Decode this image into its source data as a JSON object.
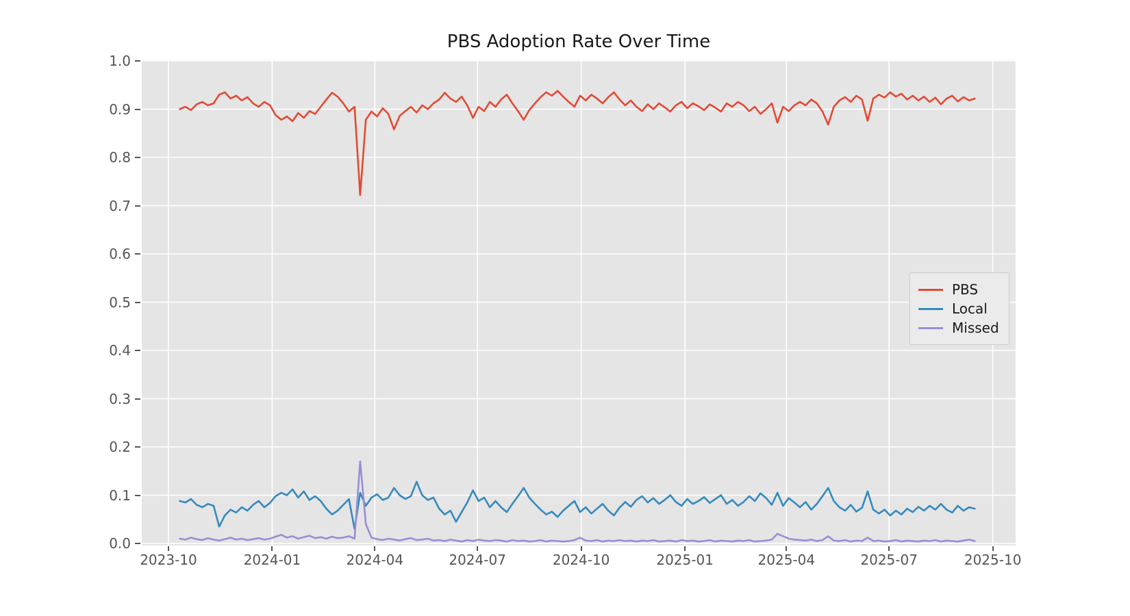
{
  "colors": {
    "figure_background": "#ffffff",
    "plot_background": "#e5e5e5",
    "grid": "#ffffff",
    "tick_label": "#555555",
    "title_text": "#1a1a1a",
    "legend_background": "#ebebeb",
    "legend_border": "#cccccc",
    "pbs_red": "#E24A33",
    "local_blue": "#348ABD",
    "missed_purple": "#988ED5"
  },
  "chart_data": {
    "type": "line",
    "title": "PBS Adoption Rate Over Time",
    "xlabel": "",
    "ylabel": "",
    "grid": true,
    "legend_position": "center right",
    "ylim": [
      0.0,
      1.0
    ],
    "y_ticks": [
      0.0,
      0.1,
      0.2,
      0.3,
      0.4,
      0.5,
      0.6,
      0.7,
      0.8,
      0.9,
      1.0
    ],
    "y_tick_labels": [
      "0.0",
      "0.1",
      "0.2",
      "0.3",
      "0.4",
      "0.5",
      "0.6",
      "0.7",
      "0.8",
      "0.9",
      "1.0"
    ],
    "x_epoch": "2023-10-01",
    "x_tick_day_offsets": [
      0,
      92,
      183,
      274,
      366,
      458,
      548,
      639,
      731
    ],
    "x_tick_labels": [
      "2023-10",
      "2024-01",
      "2024-04",
      "2024-07",
      "2024-10",
      "2025-01",
      "2025-04",
      "2025-07",
      "2025-10"
    ],
    "sampling": {
      "start_day": 10,
      "step_days": 5,
      "count": 142
    },
    "series": [
      {
        "name": "PBS",
        "color": "#E24A33",
        "values": [
          0.9,
          0.905,
          0.898,
          0.91,
          0.915,
          0.908,
          0.912,
          0.93,
          0.935,
          0.922,
          0.928,
          0.918,
          0.925,
          0.912,
          0.905,
          0.915,
          0.908,
          0.888,
          0.878,
          0.885,
          0.875,
          0.892,
          0.882,
          0.896,
          0.89,
          0.905,
          0.92,
          0.934,
          0.926,
          0.912,
          0.895,
          0.905,
          0.722,
          0.878,
          0.895,
          0.885,
          0.902,
          0.89,
          0.858,
          0.886,
          0.896,
          0.905,
          0.893,
          0.908,
          0.9,
          0.912,
          0.92,
          0.934,
          0.922,
          0.915,
          0.926,
          0.908,
          0.882,
          0.905,
          0.896,
          0.915,
          0.905,
          0.92,
          0.93,
          0.912,
          0.896,
          0.878,
          0.898,
          0.912,
          0.925,
          0.935,
          0.928,
          0.938,
          0.926,
          0.915,
          0.905,
          0.928,
          0.918,
          0.93,
          0.922,
          0.912,
          0.925,
          0.935,
          0.92,
          0.908,
          0.918,
          0.905,
          0.896,
          0.91,
          0.9,
          0.912,
          0.904,
          0.895,
          0.908,
          0.915,
          0.902,
          0.912,
          0.906,
          0.898,
          0.91,
          0.903,
          0.895,
          0.912,
          0.905,
          0.915,
          0.908,
          0.896,
          0.905,
          0.89,
          0.9,
          0.912,
          0.872,
          0.905,
          0.896,
          0.908,
          0.915,
          0.908,
          0.92,
          0.912,
          0.895,
          0.868,
          0.905,
          0.918,
          0.925,
          0.915,
          0.928,
          0.92,
          0.876,
          0.922,
          0.93,
          0.924,
          0.935,
          0.926,
          0.932,
          0.92,
          0.928,
          0.918,
          0.926,
          0.915,
          0.924,
          0.91,
          0.922,
          0.928,
          0.916,
          0.925,
          0.918,
          0.922
        ]
      },
      {
        "name": "Local",
        "color": "#348ABD",
        "values": [
          0.088,
          0.085,
          0.092,
          0.08,
          0.075,
          0.082,
          0.078,
          0.035,
          0.058,
          0.07,
          0.064,
          0.075,
          0.068,
          0.08,
          0.088,
          0.075,
          0.084,
          0.098,
          0.105,
          0.1,
          0.112,
          0.095,
          0.108,
          0.09,
          0.098,
          0.088,
          0.072,
          0.06,
          0.068,
          0.08,
          0.092,
          0.03,
          0.105,
          0.078,
          0.095,
          0.102,
          0.09,
          0.095,
          0.115,
          0.1,
          0.092,
          0.098,
          0.128,
          0.1,
          0.09,
          0.095,
          0.072,
          0.06,
          0.068,
          0.045,
          0.065,
          0.085,
          0.11,
          0.088,
          0.095,
          0.075,
          0.088,
          0.075,
          0.065,
          0.082,
          0.098,
          0.115,
          0.095,
          0.082,
          0.07,
          0.06,
          0.066,
          0.055,
          0.068,
          0.078,
          0.088,
          0.065,
          0.075,
          0.062,
          0.072,
          0.082,
          0.068,
          0.058,
          0.074,
          0.086,
          0.076,
          0.09,
          0.098,
          0.085,
          0.094,
          0.082,
          0.09,
          0.1,
          0.086,
          0.078,
          0.092,
          0.082,
          0.088,
          0.096,
          0.084,
          0.092,
          0.1,
          0.082,
          0.09,
          0.078,
          0.086,
          0.098,
          0.088,
          0.104,
          0.094,
          0.08,
          0.105,
          0.078,
          0.094,
          0.085,
          0.075,
          0.086,
          0.07,
          0.082,
          0.098,
          0.115,
          0.088,
          0.075,
          0.068,
          0.08,
          0.066,
          0.074,
          0.108,
          0.07,
          0.062,
          0.07,
          0.058,
          0.068,
          0.06,
          0.072,
          0.065,
          0.076,
          0.068,
          0.078,
          0.07,
          0.082,
          0.07,
          0.064,
          0.078,
          0.068,
          0.075,
          0.072
        ]
      },
      {
        "name": "Missed",
        "color": "#988ED5",
        "values": [
          0.01,
          0.008,
          0.012,
          0.009,
          0.007,
          0.011,
          0.008,
          0.006,
          0.009,
          0.012,
          0.008,
          0.01,
          0.007,
          0.009,
          0.011,
          0.008,
          0.01,
          0.014,
          0.018,
          0.012,
          0.015,
          0.01,
          0.013,
          0.016,
          0.011,
          0.013,
          0.01,
          0.014,
          0.011,
          0.012,
          0.015,
          0.01,
          0.17,
          0.04,
          0.012,
          0.009,
          0.007,
          0.01,
          0.008,
          0.006,
          0.009,
          0.011,
          0.007,
          0.008,
          0.01,
          0.006,
          0.007,
          0.005,
          0.008,
          0.006,
          0.004,
          0.007,
          0.005,
          0.008,
          0.006,
          0.005,
          0.007,
          0.006,
          0.004,
          0.007,
          0.005,
          0.006,
          0.004,
          0.005,
          0.007,
          0.004,
          0.006,
          0.005,
          0.004,
          0.005,
          0.007,
          0.012,
          0.006,
          0.005,
          0.007,
          0.004,
          0.006,
          0.005,
          0.007,
          0.005,
          0.006,
          0.004,
          0.006,
          0.005,
          0.007,
          0.004,
          0.005,
          0.006,
          0.004,
          0.007,
          0.005,
          0.006,
          0.004,
          0.005,
          0.007,
          0.004,
          0.006,
          0.005,
          0.004,
          0.006,
          0.005,
          0.007,
          0.004,
          0.005,
          0.006,
          0.008,
          0.02,
          0.015,
          0.01,
          0.008,
          0.007,
          0.006,
          0.008,
          0.005,
          0.007,
          0.015,
          0.006,
          0.005,
          0.007,
          0.004,
          0.006,
          0.005,
          0.012,
          0.005,
          0.006,
          0.004,
          0.005,
          0.007,
          0.004,
          0.006,
          0.005,
          0.004,
          0.006,
          0.005,
          0.007,
          0.004,
          0.006,
          0.005,
          0.004,
          0.006,
          0.008,
          0.005
        ]
      }
    ]
  }
}
